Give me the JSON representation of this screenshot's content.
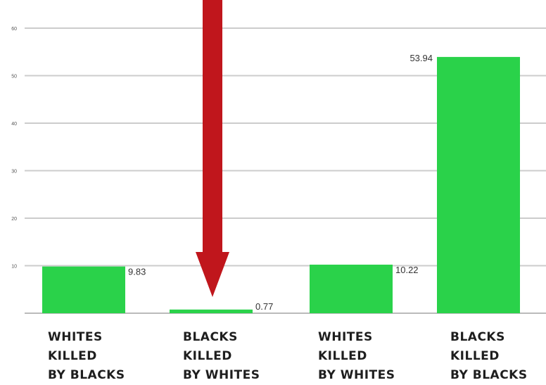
{
  "chart_data": {
    "type": "bar",
    "title": "",
    "xlabel": "",
    "ylabel": "",
    "ylim": [
      0,
      60
    ],
    "yticks": [
      10,
      20,
      30,
      40,
      50,
      60
    ],
    "grid": true,
    "categories": [
      [
        "WHITES",
        "KILLED",
        "BY BLACKS"
      ],
      [
        "BLACKS",
        "KILLED",
        "BY WHITES"
      ],
      [
        "WHITES",
        "KILLED",
        "BY WHITES"
      ],
      [
        "BLACKS",
        "KILLED",
        "BY BLACKS"
      ]
    ],
    "values": [
      9.83,
      0.77,
      10.22,
      53.94
    ],
    "value_labels": [
      "9.83",
      "0.77",
      "10.22",
      "53.94"
    ],
    "bar_color": "#2ad24a",
    "annotation": {
      "type": "arrow",
      "color": "#c0161c",
      "points_to": "BLACKS KILLED BY WHITES"
    }
  }
}
